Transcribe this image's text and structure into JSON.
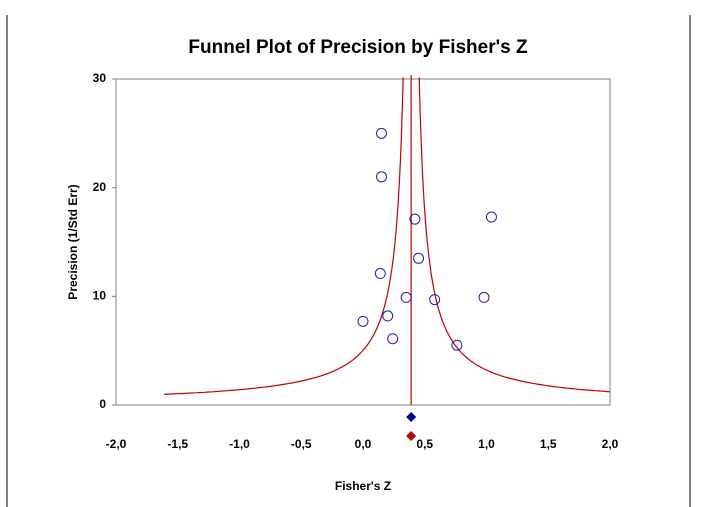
{
  "chart_data": {
    "type": "scatter",
    "title": "Funnel Plot of Precision by Fisher's Z",
    "x_label": "Fisher's Z",
    "y_label": "Precision (1/Std Err)",
    "x": [
      0.15,
      0.15,
      0.42,
      1.04,
      0.45,
      0.14,
      0.35,
      0.58,
      0.98,
      0.0,
      0.2,
      0.24,
      0.76
    ],
    "series": [
      {
        "color": "#1f1fb4",
        "values": [
          25.0,
          21.0,
          17.1,
          17.3,
          13.5,
          12.1,
          9.9,
          9.7,
          9.9,
          7.7,
          8.2,
          6.1,
          5.5
        ]
      }
    ],
    "combined_effect": {
      "value": 0.39,
      "color": "#c00000"
    },
    "summary_markers": [
      {
        "x": 0.39,
        "color": "#00008b"
      },
      {
        "x": 0.39,
        "color": "#c00000"
      }
    ],
    "xlim": [
      -2,
      2
    ],
    "xticks": [
      {
        "value": -2,
        "label": "-2,0"
      },
      {
        "value": -1.5,
        "label": "-1,5"
      },
      {
        "value": -1,
        "label": "-1,0"
      },
      {
        "value": -0.5,
        "label": "-0,5"
      },
      {
        "value": 0,
        "label": "0,0"
      },
      {
        "value": 0.5,
        "label": "0,5"
      },
      {
        "value": 1,
        "label": "1,0"
      },
      {
        "value": 1.5,
        "label": "1,5"
      },
      {
        "value": 2,
        "label": "2,0"
      }
    ],
    "ylim": [
      0,
      30
    ],
    "yticks": [
      0,
      10,
      20,
      30
    ]
  }
}
